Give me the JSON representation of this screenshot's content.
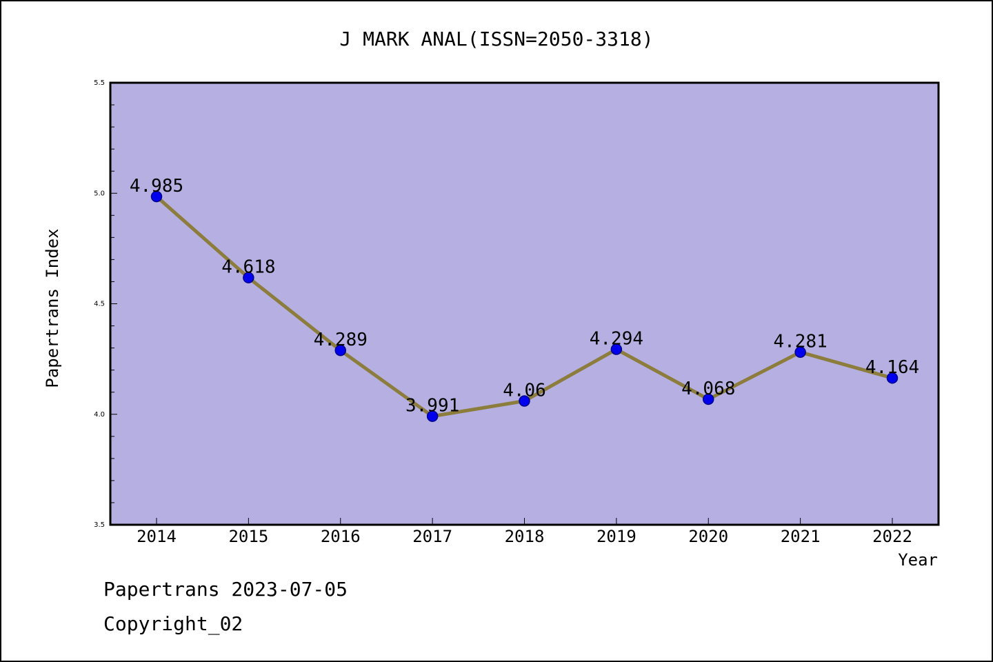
{
  "chart_data": {
    "type": "line",
    "title": "J MARK ANAL(ISSN=2050-3318)",
    "xlabel": "Year",
    "ylabel": "Papertrans Index",
    "x": [
      "2014",
      "2015",
      "2016",
      "2017",
      "2018",
      "2019",
      "2020",
      "2021",
      "2022"
    ],
    "series": [
      {
        "values": [
          4.985,
          4.618,
          4.289,
          3.991,
          4.06,
          4.294,
          4.068,
          4.281,
          4.164
        ],
        "labels": [
          "4.985",
          "4.618",
          "4.289",
          "3.991",
          "4.06",
          "4.294",
          "4.068",
          "4.281",
          "4.164"
        ]
      }
    ],
    "ylim": [
      3.5,
      5.5
    ],
    "yticks": [
      {
        "value": 3.5,
        "label": "3.5"
      },
      {
        "value": 4.0,
        "label": "4.0"
      },
      {
        "value": 4.5,
        "label": "4.5"
      },
      {
        "value": 5.0,
        "label": "5.0"
      },
      {
        "value": 5.5,
        "label": "5.5"
      }
    ],
    "grid": false,
    "legend": "none",
    "colors": {
      "plot_background": "#b5afe2",
      "line": "#8c7d3c",
      "marker": "#0000ee",
      "marker_edge": "#00008b"
    }
  },
  "footer": {
    "line1": "Papertrans 2023-07-05",
    "line2": "Copyright_02"
  }
}
